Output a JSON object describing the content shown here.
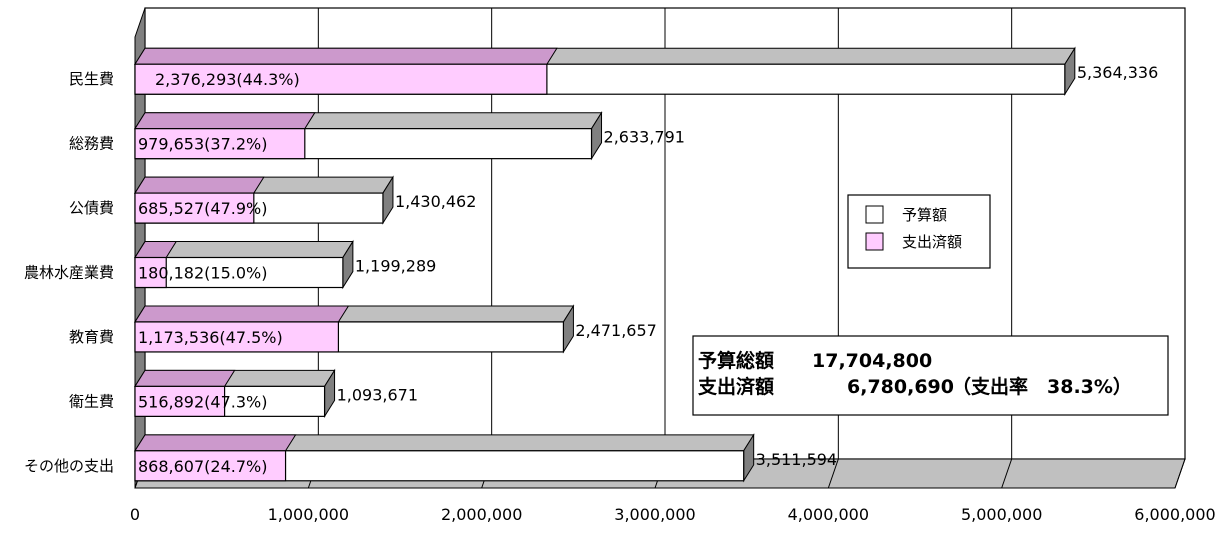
{
  "chart_data": {
    "type": "bar",
    "orientation": "horizontal",
    "three_d": true,
    "categories": [
      "民生費",
      "総務費",
      "公債費",
      "農林水産業費",
      "教育費",
      "衛生費",
      "その他の支出"
    ],
    "series": [
      {
        "name": "予算額",
        "color": "#ffffff",
        "values": [
          5364336,
          2633791,
          1430462,
          1199289,
          2471657,
          1093671,
          3511594
        ],
        "labels": [
          "5,364,336",
          "2,633,791",
          "1,430,462",
          "1,199,289",
          "2,471,657",
          "1,093,671",
          "3,511,594"
        ]
      },
      {
        "name": "支出済額",
        "color": "#ffccff",
        "values": [
          2376293,
          979653,
          685527,
          180182,
          1173536,
          516892,
          868607
        ],
        "labels": [
          "2,376,293(44.3%)",
          "979,653(37.2%)",
          "685,527(47.9%)",
          "180,182(15.0%)",
          "1,173,536(47.5%)",
          "516,892(47.3%)",
          "868,607(24.7%)"
        ]
      }
    ],
    "xlim": [
      0,
      6000000
    ],
    "xticks": [
      0,
      1000000,
      2000000,
      3000000,
      4000000,
      5000000,
      6000000
    ],
    "xtick_labels": [
      "0",
      "1,000,000",
      "2,000,000",
      "3,000,000",
      "4,000,000",
      "5,000,000",
      "6,000,000"
    ],
    "grid": true,
    "legend_position": "right",
    "summary": {
      "budget_label": "予算総額",
      "budget_value": "17,704,800",
      "spent_label": "支出済額",
      "spent_value": "6,780,690",
      "rate_text": "（支出率　38.3%）"
    },
    "colors": {
      "wall": "#ffffff",
      "floor": "#c0c0c0",
      "left_wall": "#808080",
      "bar_top_gray": "#c0c0c0",
      "bar_top_pink": "#cc99cc",
      "grid": "#000000"
    }
  }
}
